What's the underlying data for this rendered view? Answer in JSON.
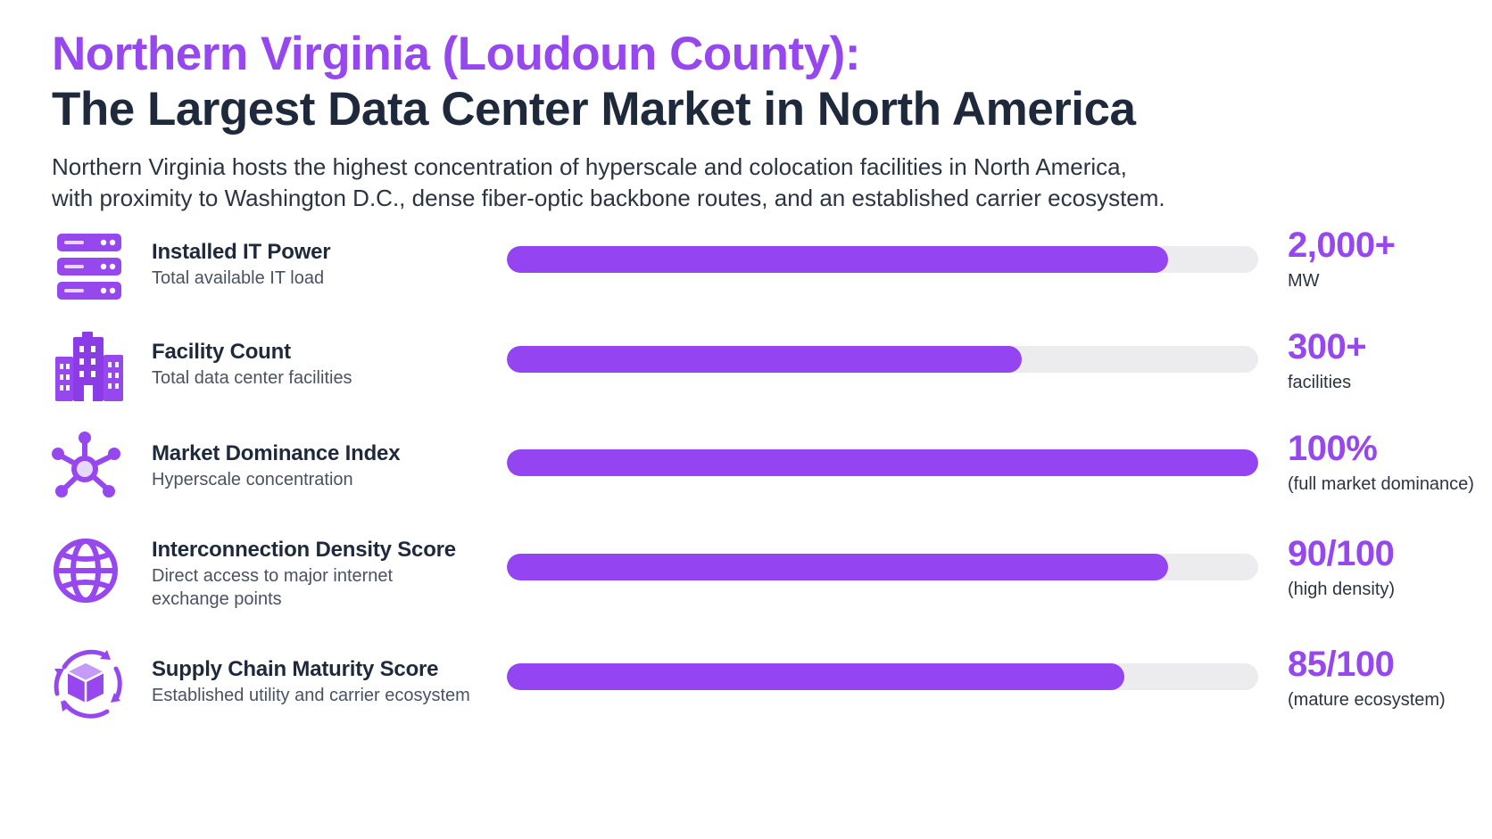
{
  "header": {
    "title_line1": "Northern Virginia (Loudoun County):",
    "title_line2": "The Largest Data Center Market in North America",
    "subtitle_line1": "Northern Virginia hosts the highest concentration of hyperscale and colocation facilities in North America,",
    "subtitle_line2": "with proximity to Washington D.C., dense fiber-optic backbone routes, and an established carrier ecosystem."
  },
  "colors": {
    "accent": "#9747ee",
    "bar_fill": "#9444f0",
    "bar_track": "#ececee",
    "heading": "#1e2a3c"
  },
  "chart_data": {
    "type": "bar",
    "orientation": "horizontal",
    "categories": [
      "Installed IT Power",
      "Facility Count",
      "Market Dominance Index",
      "Interconnection Density Score",
      "Supply Chain Maturity Score"
    ],
    "values": [
      0.88,
      0.685,
      1.0,
      0.88,
      0.822
    ],
    "value_scale": "fraction of full bar",
    "grid": false,
    "legend": "none"
  },
  "metrics": [
    {
      "icon": "server-stack-icon",
      "name": "Installed IT Power",
      "desc": "Total available IT load",
      "value": "2,000+",
      "unit": "MW",
      "fill": 0.88
    },
    {
      "icon": "buildings-icon",
      "name": "Facility Count",
      "desc": "Total data center facilities",
      "value": "300+",
      "unit": "facilities",
      "fill": 0.685
    },
    {
      "icon": "network-hub-icon",
      "name": "Market Dominance Index",
      "desc": "Hyperscale concentration",
      "value": "100%",
      "unit": "(full market dominance)",
      "fill": 1.0
    },
    {
      "icon": "globe-icon",
      "name": "Interconnection Density Score",
      "desc": "Direct access to major internet exchange points",
      "value": "90/100",
      "unit": "(high density)",
      "fill": 0.88
    },
    {
      "icon": "supply-chain-cube-icon",
      "name": "Supply Chain Maturity Score",
      "desc": "Established utility and carrier ecosystem",
      "value": "85/100",
      "unit": "(mature ecosystem)",
      "fill": 0.822
    }
  ]
}
